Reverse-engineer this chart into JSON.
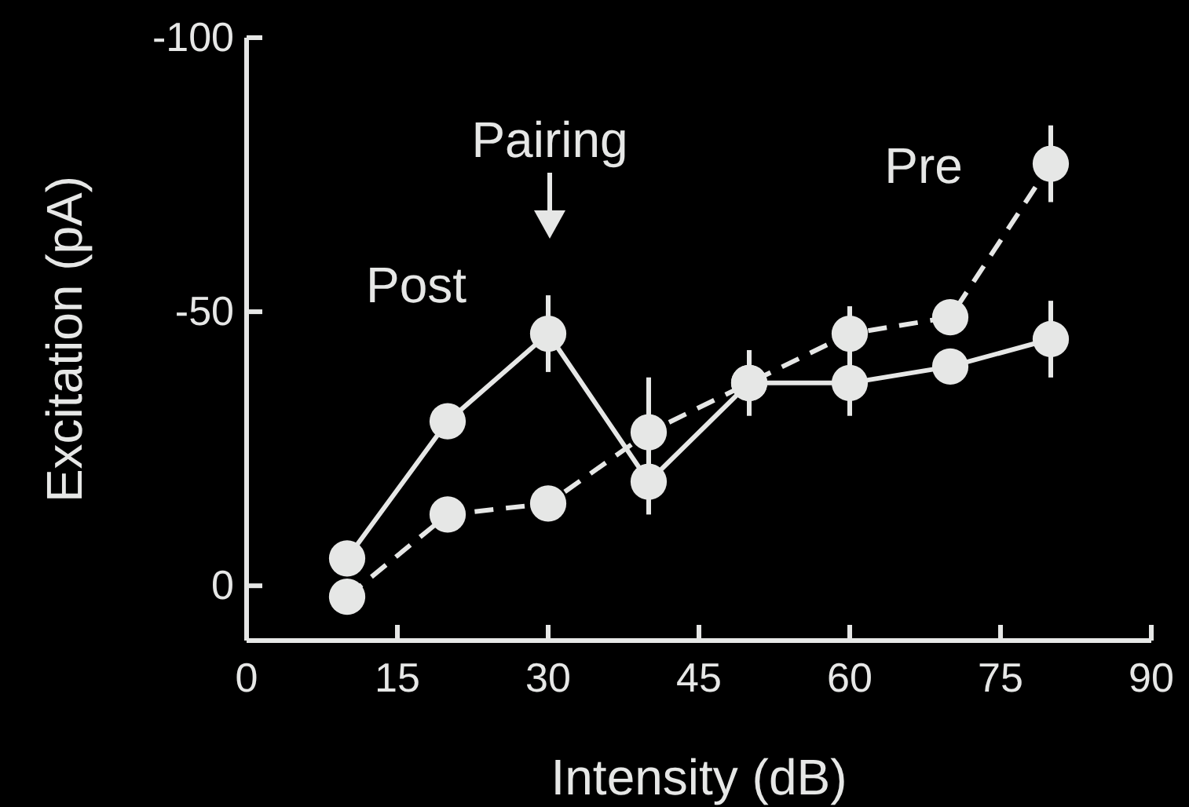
{
  "chart_data": {
    "type": "line",
    "xlabel": "Intensity (dB)",
    "ylabel": "Excitation (pA)",
    "x": [
      10,
      20,
      30,
      40,
      50,
      60,
      70,
      80
    ],
    "series": [
      {
        "name": "Post",
        "color": "#e6e7e6",
        "line_style": "solid",
        "values": [
          -5,
          -30,
          -46,
          -19,
          -37,
          -37,
          -40,
          -45
        ],
        "errors": [
          3,
          null,
          7,
          6,
          6,
          6,
          null,
          7
        ]
      },
      {
        "name": "Pre",
        "color": "#e6e7e6",
        "line_style": "dashed",
        "values": [
          2,
          -13,
          -15,
          -28,
          -37,
          -46,
          -49,
          -77
        ],
        "errors": [
          3,
          2,
          2,
          10,
          null,
          5,
          null,
          7
        ]
      }
    ],
    "xlim": [
      0,
      90
    ],
    "xticks": [
      0,
      15,
      30,
      45,
      60,
      75,
      90
    ],
    "ylim": [
      10,
      -100
    ],
    "yticks": [
      -100,
      -50,
      0
    ],
    "marker": "circle",
    "grid": false,
    "annotations": [
      "Pairing"
    ]
  }
}
